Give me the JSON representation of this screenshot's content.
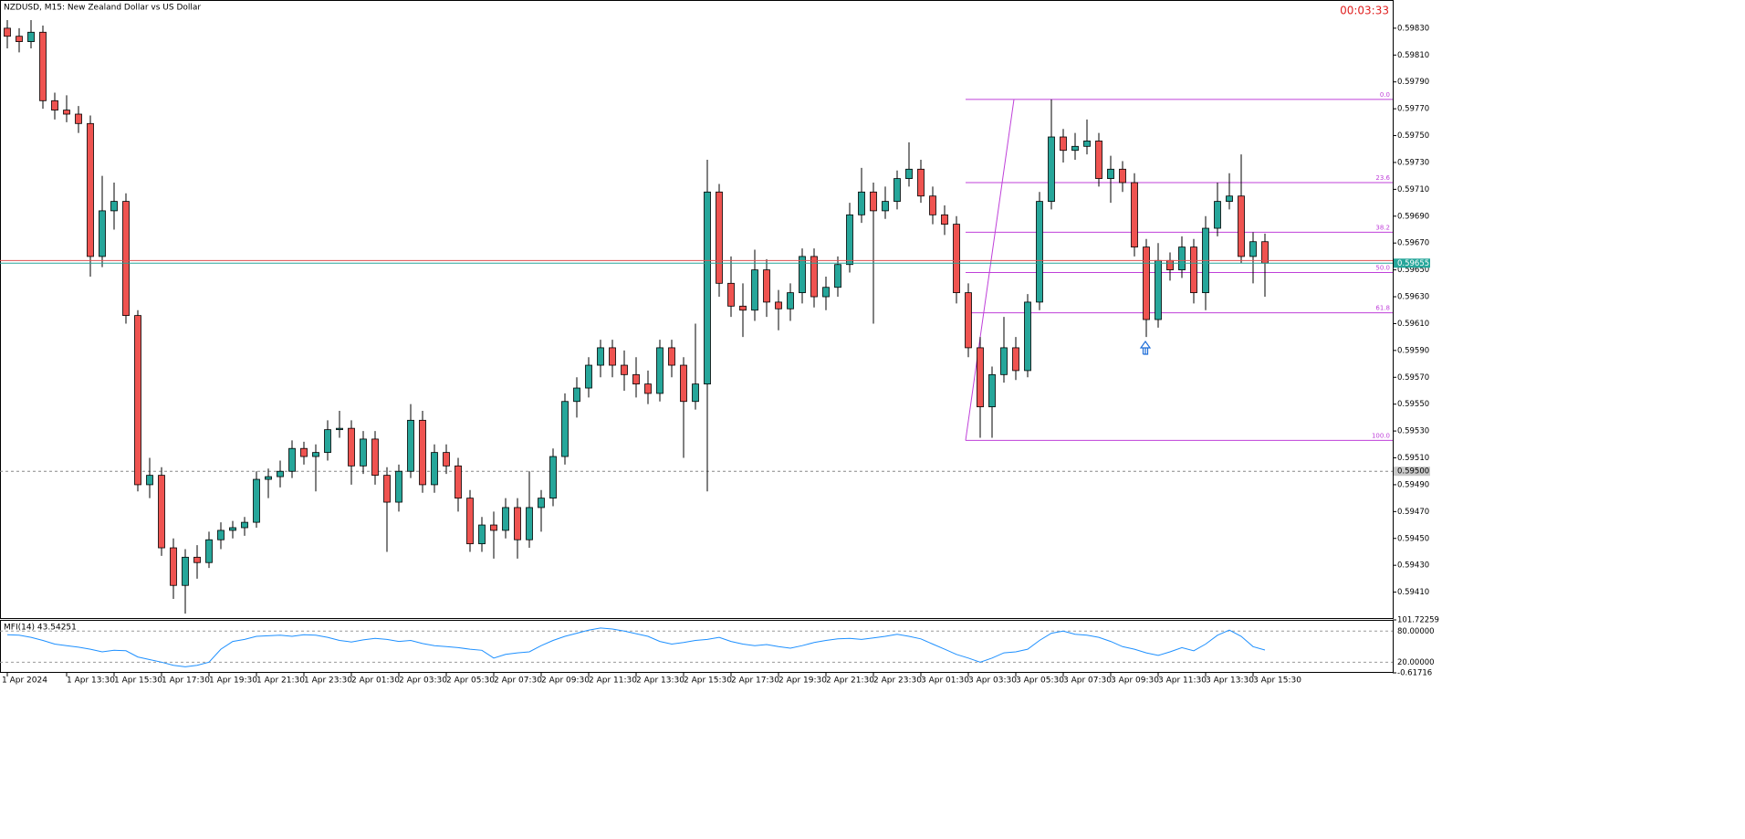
{
  "chart_data": {
    "type": "candlestick",
    "title": "NZDUSD, M15:  New Zealand Dollar vs US Dollar",
    "timer": "00:03:33",
    "up_color": "#26a69a",
    "down_color": "#ef5350",
    "ylim": [
      0.5939,
      0.59851
    ],
    "yticks": [
      {
        "value": 0.5983,
        "label": "0.59830"
      },
      {
        "value": 0.5981,
        "label": "0.59810"
      },
      {
        "value": 0.5979,
        "label": "0.59790"
      },
      {
        "value": 0.5977,
        "label": "0.59770"
      },
      {
        "value": 0.5975,
        "label": "0.59750"
      },
      {
        "value": 0.5973,
        "label": "0.59730"
      },
      {
        "value": 0.5971,
        "label": "0.59710"
      },
      {
        "value": 0.5969,
        "label": "0.59690"
      },
      {
        "value": 0.5967,
        "label": "0.59670"
      },
      {
        "value": 0.5965,
        "label": "0.59650"
      },
      {
        "value": 0.5963,
        "label": "0.59630"
      },
      {
        "value": 0.5961,
        "label": "0.59610"
      },
      {
        "value": 0.5959,
        "label": "0.59590"
      },
      {
        "value": 0.5957,
        "label": "0.59570"
      },
      {
        "value": 0.5955,
        "label": "0.59550"
      },
      {
        "value": 0.5953,
        "label": "0.59530"
      },
      {
        "value": 0.5951,
        "label": "0.59510"
      },
      {
        "value": 0.5949,
        "label": "0.59490"
      },
      {
        "value": 0.5947,
        "label": "0.59470"
      },
      {
        "value": 0.5945,
        "label": "0.59450"
      },
      {
        "value": 0.5943,
        "label": "0.59430"
      },
      {
        "value": 0.5941,
        "label": "0.59410"
      }
    ],
    "xticks": [
      {
        "value": 0,
        "label": "1 Apr 2024"
      },
      {
        "value": 5,
        "label": "1 Apr 13:30"
      },
      {
        "value": 9,
        "label": "1 Apr 15:30"
      },
      {
        "value": 13,
        "label": "1 Apr 17:30"
      },
      {
        "value": 17,
        "label": "1 Apr 19:30"
      },
      {
        "value": 21,
        "label": "1 Apr 21:30"
      },
      {
        "value": 25,
        "label": "1 Apr 23:30"
      },
      {
        "value": 29,
        "label": "2 Apr 01:30"
      },
      {
        "value": 33,
        "label": "2 Apr 03:30"
      },
      {
        "value": 37,
        "label": "2 Apr 05:30"
      },
      {
        "value": 41,
        "label": "2 Apr 07:30"
      },
      {
        "value": 45,
        "label": "2 Apr 09:30"
      },
      {
        "value": 49,
        "label": "2 Apr 11:30"
      },
      {
        "value": 53,
        "label": "2 Apr 13:30"
      },
      {
        "value": 57,
        "label": "2 Apr 15:30"
      },
      {
        "value": 61,
        "label": "2 Apr 17:30"
      },
      {
        "value": 65,
        "label": "2 Apr 19:30"
      },
      {
        "value": 69,
        "label": "2 Apr 21:30"
      },
      {
        "value": 73,
        "label": "2 Apr 23:30"
      },
      {
        "value": 77,
        "label": "3 Apr 01:30"
      },
      {
        "value": 81,
        "label": "3 Apr 03:30"
      },
      {
        "value": 85,
        "label": "3 Apr 05:30"
      },
      {
        "value": 89,
        "label": "3 Apr 07:30"
      },
      {
        "value": 93,
        "label": "3 Apr 09:30"
      },
      {
        "value": 97,
        "label": "3 Apr 11:30"
      },
      {
        "value": 101,
        "label": "3 Apr 13:30"
      },
      {
        "value": 105,
        "label": "3 Apr 15:30"
      }
    ],
    "candles": [
      [
        0.5983,
        0.59836,
        0.59815,
        0.59824
      ],
      [
        0.59824,
        0.5983,
        0.59812,
        0.5982
      ],
      [
        0.5982,
        0.59836,
        0.59815,
        0.59827
      ],
      [
        0.59827,
        0.59832,
        0.5977,
        0.59776
      ],
      [
        0.59776,
        0.59782,
        0.59762,
        0.59769
      ],
      [
        0.59769,
        0.5978,
        0.5976,
        0.59766
      ],
      [
        0.59766,
        0.59772,
        0.59752,
        0.59759
      ],
      [
        0.59759,
        0.59765,
        0.59645,
        0.5966
      ],
      [
        0.5966,
        0.5972,
        0.59652,
        0.59694
      ],
      [
        0.59694,
        0.59715,
        0.5968,
        0.59701
      ],
      [
        0.59701,
        0.59707,
        0.5961,
        0.59616
      ],
      [
        0.59616,
        0.5962,
        0.59485,
        0.5949
      ],
      [
        0.5949,
        0.5951,
        0.5948,
        0.59497
      ],
      [
        0.59497,
        0.59503,
        0.59437,
        0.59443
      ],
      [
        0.59443,
        0.5945,
        0.59405,
        0.59415
      ],
      [
        0.59415,
        0.59442,
        0.59394,
        0.59436
      ],
      [
        0.59436,
        0.59445,
        0.5942,
        0.59432
      ],
      [
        0.59432,
        0.59455,
        0.59428,
        0.59449
      ],
      [
        0.59449,
        0.59462,
        0.59442,
        0.59456
      ],
      [
        0.59456,
        0.59463,
        0.5945,
        0.59458
      ],
      [
        0.59458,
        0.59466,
        0.59452,
        0.59462
      ],
      [
        0.59462,
        0.595,
        0.59458,
        0.59494
      ],
      [
        0.59494,
        0.59502,
        0.5948,
        0.59496
      ],
      [
        0.59496,
        0.59508,
        0.59488,
        0.595
      ],
      [
        0.595,
        0.59523,
        0.59495,
        0.59517
      ],
      [
        0.59517,
        0.59522,
        0.59505,
        0.59511
      ],
      [
        0.59511,
        0.5952,
        0.59485,
        0.59514
      ],
      [
        0.59514,
        0.59538,
        0.59508,
        0.59531
      ],
      [
        0.59531,
        0.59545,
        0.59525,
        0.59532
      ],
      [
        0.59532,
        0.59538,
        0.5949,
        0.59504
      ],
      [
        0.59504,
        0.5953,
        0.59498,
        0.59524
      ],
      [
        0.59524,
        0.5953,
        0.5949,
        0.59497
      ],
      [
        0.59497,
        0.59503,
        0.5944,
        0.59477
      ],
      [
        0.59477,
        0.59505,
        0.5947,
        0.595
      ],
      [
        0.595,
        0.5955,
        0.59495,
        0.59538
      ],
      [
        0.59538,
        0.59545,
        0.59484,
        0.5949
      ],
      [
        0.5949,
        0.5952,
        0.59484,
        0.59514
      ],
      [
        0.59514,
        0.5952,
        0.59498,
        0.59504
      ],
      [
        0.59504,
        0.5951,
        0.5947,
        0.5948
      ],
      [
        0.5948,
        0.59486,
        0.5944,
        0.59446
      ],
      [
        0.59446,
        0.59466,
        0.5944,
        0.5946
      ],
      [
        0.5946,
        0.5947,
        0.59435,
        0.59456
      ],
      [
        0.59456,
        0.5948,
        0.5945,
        0.59473
      ],
      [
        0.59473,
        0.5948,
        0.59435,
        0.59449
      ],
      [
        0.59449,
        0.595,
        0.59443,
        0.59473
      ],
      [
        0.59473,
        0.59486,
        0.59455,
        0.5948
      ],
      [
        0.5948,
        0.59517,
        0.59474,
        0.59511
      ],
      [
        0.59511,
        0.59558,
        0.59505,
        0.59552
      ],
      [
        0.59552,
        0.5957,
        0.5954,
        0.59562
      ],
      [
        0.59562,
        0.59585,
        0.59555,
        0.59579
      ],
      [
        0.59579,
        0.59598,
        0.5957,
        0.59592
      ],
      [
        0.59592,
        0.59598,
        0.5957,
        0.59579
      ],
      [
        0.59579,
        0.5959,
        0.5956,
        0.59572
      ],
      [
        0.59572,
        0.59585,
        0.59555,
        0.59565
      ],
      [
        0.59565,
        0.59575,
        0.5955,
        0.59558
      ],
      [
        0.59558,
        0.59598,
        0.59552,
        0.59592
      ],
      [
        0.59592,
        0.59598,
        0.5957,
        0.59579
      ],
      [
        0.59579,
        0.59585,
        0.5951,
        0.59552
      ],
      [
        0.59552,
        0.5961,
        0.59546,
        0.59565
      ],
      [
        0.59565,
        0.59732,
        0.59485,
        0.59708
      ],
      [
        0.59708,
        0.59714,
        0.5963,
        0.5964
      ],
      [
        0.5964,
        0.5966,
        0.59615,
        0.59623
      ],
      [
        0.59623,
        0.5964,
        0.596,
        0.5962
      ],
      [
        0.5962,
        0.59665,
        0.59612,
        0.5965
      ],
      [
        0.5965,
        0.59658,
        0.59615,
        0.59626
      ],
      [
        0.59626,
        0.59635,
        0.59605,
        0.59621
      ],
      [
        0.59621,
        0.5964,
        0.59612,
        0.59633
      ],
      [
        0.59633,
        0.59666,
        0.59625,
        0.5966
      ],
      [
        0.5966,
        0.59666,
        0.59622,
        0.5963
      ],
      [
        0.5963,
        0.59645,
        0.5962,
        0.59637
      ],
      [
        0.59637,
        0.5966,
        0.5963,
        0.59654
      ],
      [
        0.59654,
        0.597,
        0.59648,
        0.59691
      ],
      [
        0.59691,
        0.59726,
        0.59685,
        0.59708
      ],
      [
        0.59708,
        0.59715,
        0.5961,
        0.59694
      ],
      [
        0.59694,
        0.59712,
        0.59688,
        0.59701
      ],
      [
        0.59701,
        0.59724,
        0.59695,
        0.59718
      ],
      [
        0.59718,
        0.59745,
        0.59712,
        0.59725
      ],
      [
        0.59725,
        0.59732,
        0.597,
        0.59705
      ],
      [
        0.59705,
        0.59712,
        0.59684,
        0.59691
      ],
      [
        0.59691,
        0.59698,
        0.59676,
        0.59684
      ],
      [
        0.59684,
        0.5969,
        0.59625,
        0.59633
      ],
      [
        0.59633,
        0.5964,
        0.59585,
        0.59592
      ],
      [
        0.59592,
        0.596,
        0.59525,
        0.59548
      ],
      [
        0.59548,
        0.59578,
        0.59525,
        0.59572
      ],
      [
        0.59572,
        0.59615,
        0.59566,
        0.59592
      ],
      [
        0.59592,
        0.596,
        0.59568,
        0.59575
      ],
      [
        0.59575,
        0.59632,
        0.5957,
        0.59626
      ],
      [
        0.59626,
        0.59708,
        0.5962,
        0.59701
      ],
      [
        0.59701,
        0.59777,
        0.59695,
        0.59749
      ],
      [
        0.59749,
        0.59755,
        0.5973,
        0.59739
      ],
      [
        0.59739,
        0.59752,
        0.59732,
        0.59742
      ],
      [
        0.59742,
        0.59762,
        0.59736,
        0.59746
      ],
      [
        0.59746,
        0.59752,
        0.59712,
        0.59718
      ],
      [
        0.59718,
        0.59735,
        0.597,
        0.59725
      ],
      [
        0.59725,
        0.59731,
        0.59708,
        0.59715
      ],
      [
        0.59715,
        0.59722,
        0.5966,
        0.59667
      ],
      [
        0.59667,
        0.59673,
        0.596,
        0.59613
      ],
      [
        0.59613,
        0.5967,
        0.59607,
        0.59657
      ],
      [
        0.59657,
        0.59663,
        0.59642,
        0.5965
      ],
      [
        0.5965,
        0.59675,
        0.59644,
        0.59667
      ],
      [
        0.59667,
        0.59673,
        0.59625,
        0.59633
      ],
      [
        0.59633,
        0.5969,
        0.5962,
        0.59681
      ],
      [
        0.59681,
        0.59715,
        0.59675,
        0.59701
      ],
      [
        0.59701,
        0.59722,
        0.59695,
        0.59705
      ],
      [
        0.59705,
        0.59736,
        0.59655,
        0.5966
      ],
      [
        0.5966,
        0.59678,
        0.5964,
        0.59671
      ],
      [
        0.59671,
        0.59677,
        0.5963,
        0.59655
      ]
    ],
    "bid": {
      "value": 0.59655,
      "label": "0.59655"
    },
    "ask": 0.59657,
    "level_line": {
      "value": 0.595,
      "label": "0.59500"
    },
    "fibonacci": {
      "color": "#bf40d9",
      "levels": [
        {
          "value": 0.59777,
          "label": "0.0"
        },
        {
          "value": 0.59715,
          "label": "23.6"
        },
        {
          "value": 0.59678,
          "label": "38.2"
        },
        {
          "value": 0.59648,
          "label": "50.0"
        },
        {
          "value": 0.59618,
          "label": "61.8"
        },
        {
          "value": 0.59523,
          "label": "100.0"
        }
      ]
    },
    "indicator": {
      "title": "MFI(14) 43.54251",
      "color": "#1e90ff",
      "ylim": [
        -0.61716,
        101.72259
      ],
      "yticks": [
        {
          "value": 101.72259,
          "label": "101.72259"
        },
        {
          "value": 80,
          "label": "80.00000"
        },
        {
          "value": 20,
          "label": "20.00000"
        },
        {
          "value": -0.61716,
          "label": "-0.61716"
        }
      ],
      "values": [
        73,
        72,
        68,
        62,
        55,
        52,
        49,
        45,
        40,
        43,
        42,
        30,
        25,
        20,
        14,
        11,
        14,
        20,
        45,
        60,
        64,
        70,
        71,
        72,
        70,
        73,
        72,
        68,
        62,
        59,
        63,
        66,
        64,
        60,
        62,
        56,
        52,
        50,
        48,
        45,
        43,
        28,
        35,
        38,
        40,
        52,
        62,
        70,
        76,
        82,
        86,
        84,
        80,
        75,
        70,
        60,
        55,
        58,
        62,
        64,
        68,
        60,
        55,
        52,
        54,
        50,
        47,
        52,
        58,
        62,
        65,
        66,
        64,
        67,
        70,
        74,
        70,
        65,
        55,
        45,
        35,
        28,
        20,
        28,
        38,
        40,
        45,
        62,
        76,
        80,
        74,
        72,
        68,
        60,
        50,
        45,
        38,
        33,
        40,
        48,
        42,
        55,
        72,
        82,
        70,
        50,
        43.54251
      ]
    }
  }
}
